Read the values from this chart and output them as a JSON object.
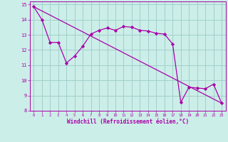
{
  "xlabel": "Windchill (Refroidissement éolien,°C)",
  "background_color": "#cceee8",
  "grid_color": "#a0d0cc",
  "line_color": "#aa00aa",
  "xlim": [
    -0.5,
    23.5
  ],
  "ylim": [
    8,
    15.2
  ],
  "yticks": [
    8,
    9,
    10,
    11,
    12,
    13,
    14,
    15
  ],
  "xticks": [
    0,
    1,
    2,
    3,
    4,
    5,
    6,
    7,
    8,
    9,
    10,
    11,
    12,
    13,
    14,
    15,
    16,
    17,
    18,
    19,
    20,
    21,
    22,
    23
  ],
  "line_data_x": [
    0,
    1,
    2,
    3,
    4,
    5,
    6,
    7,
    8,
    9,
    10,
    11,
    12,
    13,
    14,
    15,
    16,
    17,
    18,
    19,
    20,
    21,
    22,
    23
  ],
  "line_data_y": [
    14.85,
    14.0,
    12.5,
    12.5,
    11.15,
    11.6,
    12.25,
    13.05,
    13.3,
    13.45,
    13.3,
    13.55,
    13.5,
    13.3,
    13.25,
    13.1,
    13.05,
    12.4,
    8.55,
    9.55,
    9.5,
    9.45,
    9.75,
    8.5
  ],
  "line_trend_x": [
    0,
    23
  ],
  "line_trend_y": [
    14.85,
    8.5
  ]
}
